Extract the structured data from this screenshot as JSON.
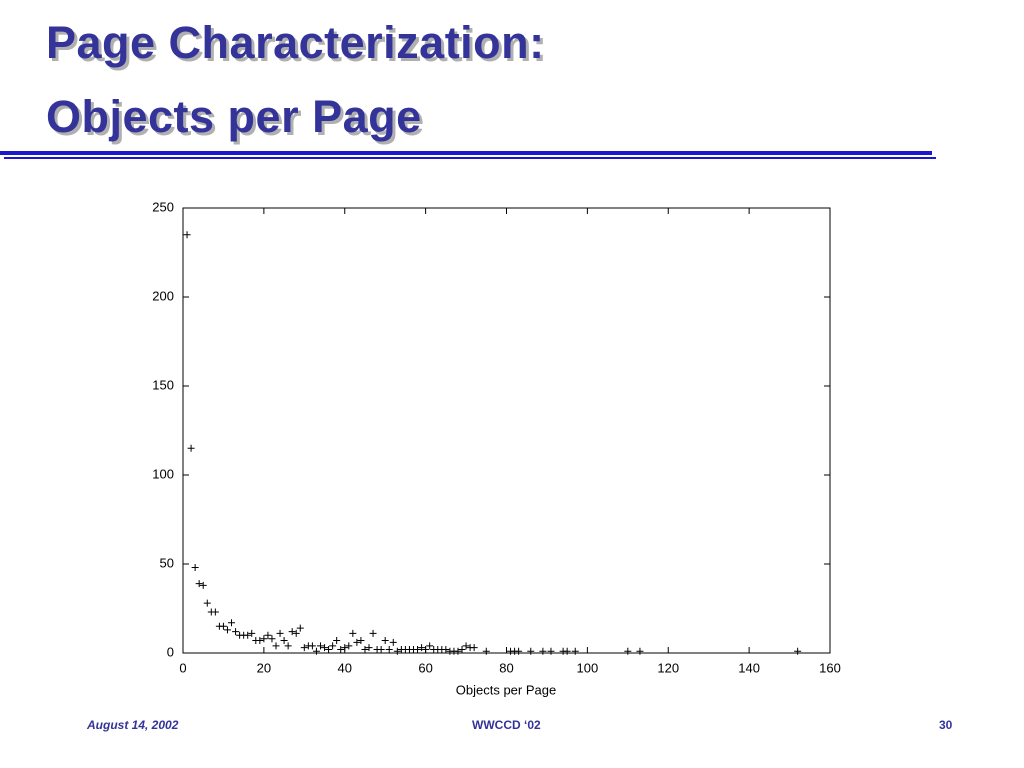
{
  "header": {
    "title_lines": [
      "Page Characterization:",
      "Objects per Page"
    ]
  },
  "chart_data": {
    "type": "scatter",
    "xlabel": "Objects per Page",
    "marker": "+",
    "color": "#000000",
    "x": [
      1,
      2,
      3,
      4,
      5,
      6,
      7,
      8,
      9,
      10,
      11,
      12,
      13,
      14,
      15,
      16,
      17,
      18,
      19,
      20,
      21,
      22,
      23,
      24,
      25,
      26,
      27,
      28,
      29,
      30,
      31,
      32,
      33,
      34,
      35,
      36,
      37,
      38,
      39,
      40,
      41,
      42,
      43,
      44,
      45,
      46,
      47,
      48,
      49,
      50,
      51,
      52,
      53,
      54,
      55,
      56,
      57,
      58,
      59,
      60,
      61,
      62,
      63,
      64,
      65,
      66,
      67,
      68,
      69,
      70,
      71,
      72,
      75,
      81,
      82,
      83,
      86,
      89,
      91,
      94,
      95,
      97,
      110,
      113,
      152
    ],
    "values": [
      235,
      115,
      48,
      39,
      38,
      28,
      23,
      23,
      15,
      15,
      13,
      17,
      12,
      10,
      10,
      10,
      11,
      7,
      7,
      8,
      10,
      8,
      4,
      11,
      7,
      4,
      12,
      11,
      14,
      3,
      4,
      4,
      1,
      4,
      3,
      2,
      4,
      7,
      2,
      3,
      4,
      11,
      6,
      7,
      2,
      3,
      11,
      2,
      2,
      7,
      2,
      6,
      1,
      2,
      2,
      2,
      2,
      2,
      3,
      2,
      4,
      2,
      2,
      2,
      2,
      1,
      1,
      1,
      2,
      4,
      3,
      3,
      1,
      1,
      1,
      1,
      1,
      1,
      1,
      1,
      1,
      1,
      1,
      1,
      1
    ],
    "xlim": [
      0,
      160
    ],
    "ylim": [
      0,
      250
    ],
    "xticks": [
      0,
      20,
      40,
      60,
      80,
      100,
      120,
      140,
      160
    ],
    "yticks": [
      0,
      50,
      100,
      150,
      200,
      250
    ]
  },
  "footer": {
    "date": "August 14, 2002",
    "event": "WWCCD ‘02",
    "page": "30"
  }
}
